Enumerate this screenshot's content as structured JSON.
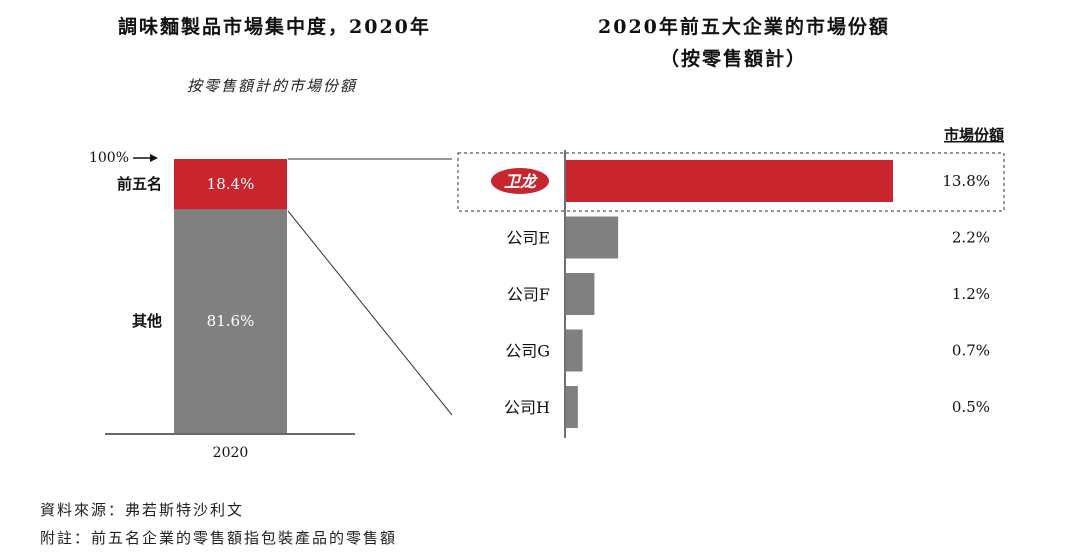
{
  "left_chart": {
    "title": "調味麵製品市場集中度，2020年",
    "subtitle": "按零售額計的市場份額",
    "top_marker": "100%",
    "year_label": "2020"
  },
  "right_chart": {
    "title": "2020年前五大企業的市場份額",
    "subtitle": "（按零售額計）",
    "column_header": "市場份額",
    "logo_text": "卫龙"
  },
  "footnotes": {
    "source": "資料來源：弗若斯特沙利文",
    "note": "附註：前五名企業的零售額指包裝產品的零售額"
  },
  "colors": {
    "red": "#c9252f",
    "gray": "#808080"
  },
  "chart_data": [
    {
      "type": "bar",
      "stacked": true,
      "categories": [
        "2020"
      ],
      "series": [
        {
          "name": "前五名",
          "values": [
            18.4
          ],
          "label": "18.4%",
          "color": "#c9252f"
        },
        {
          "name": "其他",
          "values": [
            81.6
          ],
          "label": "81.6%",
          "color": "#808080"
        }
      ],
      "ylim": [
        0,
        100
      ]
    },
    {
      "type": "bar",
      "orientation": "horizontal",
      "categories": [
        "卫龙",
        "公司E",
        "公司F",
        "公司G",
        "公司H"
      ],
      "values": [
        13.8,
        2.2,
        1.2,
        0.7,
        0.5
      ],
      "value_labels": [
        "13.8%",
        "2.2%",
        "1.2%",
        "0.7%",
        "0.5%"
      ],
      "colors": [
        "#c9252f",
        "#808080",
        "#808080",
        "#808080",
        "#808080"
      ]
    }
  ]
}
